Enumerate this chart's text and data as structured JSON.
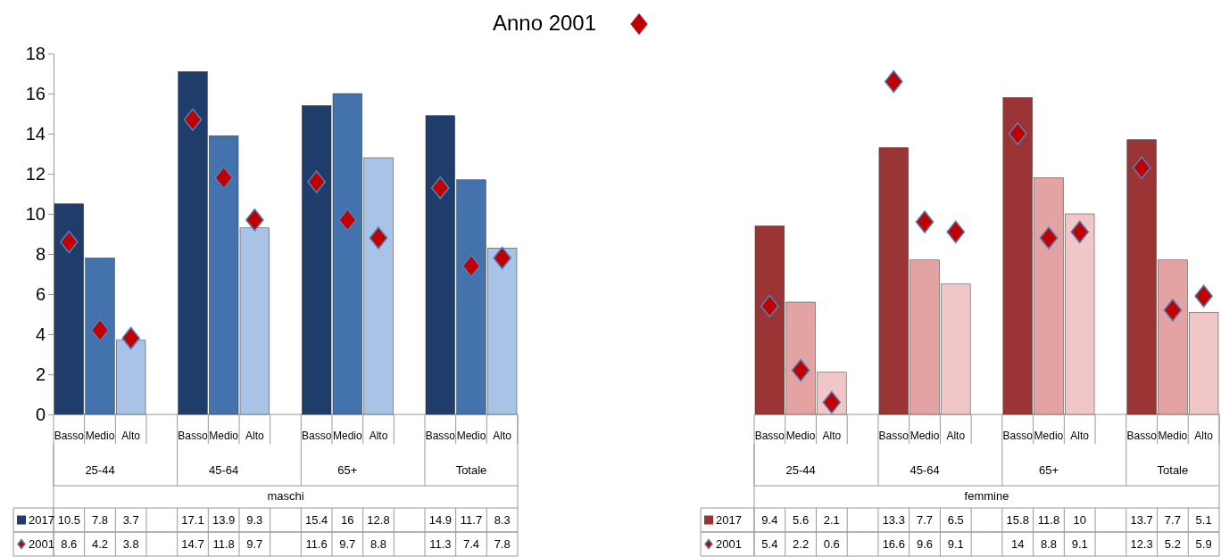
{
  "chart_data": [
    {
      "type": "bar",
      "title": "Anno 2001",
      "xlabel": "maschi",
      "annotations": [
        "25-44",
        "45-64",
        "65+",
        "Totale"
      ],
      "categories": [
        "Basso",
        "Medio",
        "Alto",
        null,
        "Basso",
        "Medio",
        "Alto",
        null,
        "Basso",
        "Medio",
        "Alto",
        null,
        "Basso",
        "Medio",
        "Alto"
      ],
      "series": [
        {
          "name": "2017",
          "colors": [
            "#1f3d6b",
            "#4472ad",
            "#a9c3e6",
            null,
            "#1f3d6b",
            "#4472ad",
            "#a9c3e6",
            null,
            "#1f3d6b",
            "#4472ad",
            "#a9c3e6",
            null,
            "#1f3d6b",
            "#4472ad",
            "#a9c3e6"
          ],
          "values": [
            10.5,
            7.8,
            3.7,
            null,
            17.1,
            13.9,
            9.3,
            null,
            15.4,
            16,
            12.8,
            null,
            14.9,
            11.7,
            8.3
          ]
        },
        {
          "name": "2001",
          "type": "scatter",
          "color": "#c00000",
          "values": [
            8.6,
            4.2,
            3.8,
            null,
            14.7,
            11.8,
            9.7,
            null,
            11.6,
            9.7,
            8.8,
            null,
            11.3,
            7.4,
            7.8
          ]
        }
      ],
      "ylim": [
        0,
        18
      ],
      "yticks": [
        0,
        2,
        4,
        6,
        8,
        10,
        12,
        14,
        16,
        18
      ],
      "marker": "diamond",
      "data_labels": true,
      "legend": "bottom"
    },
    {
      "type": "bar",
      "xlabel": "femmine",
      "annotations": [
        "25-44",
        "45-64",
        "65+",
        "Totale"
      ],
      "categories": [
        "Basso",
        "Medio",
        "Alto",
        null,
        "Basso",
        "Medio",
        "Alto",
        null,
        "Basso",
        "Medio",
        "Alto",
        null,
        "Basso",
        "Medio",
        "Alto"
      ],
      "series": [
        {
          "name": "2017",
          "colors": [
            "#9b3535",
            "#e3a3a3",
            "#f1c6c6",
            null,
            "#9b3535",
            "#e3a3a3",
            "#f1c6c6",
            null,
            "#9b3535",
            "#e3a3a3",
            "#f1c6c6",
            null,
            "#9b3535",
            "#e3a3a3",
            "#f1c6c6"
          ],
          "values": [
            9.4,
            5.6,
            2.1,
            null,
            13.3,
            7.7,
            6.5,
            null,
            15.8,
            11.8,
            10,
            null,
            13.7,
            7.7,
            5.1
          ]
        },
        {
          "name": "2001",
          "type": "scatter",
          "color": "#c00000",
          "values": [
            5.4,
            2.2,
            0.6,
            null,
            16.6,
            9.6,
            9.1,
            null,
            14,
            8.8,
            9.1,
            null,
            12.3,
            5.2,
            5.9
          ]
        }
      ],
      "ylim": [
        0,
        18
      ],
      "tick_labels": "x",
      "marker": "diamond",
      "data_labels": true,
      "legend": "bottom"
    }
  ]
}
